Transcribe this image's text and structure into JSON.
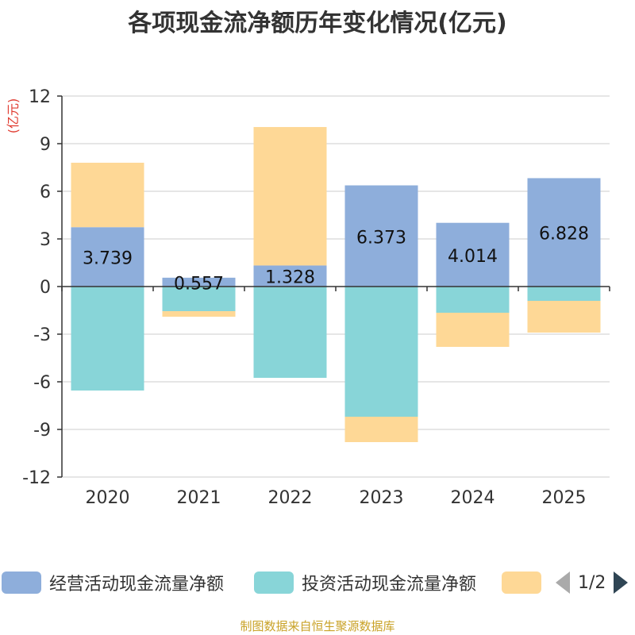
{
  "chart_data": {
    "type": "bar",
    "stacked": true,
    "title": "各项现金流净额历年变化情况(亿元)",
    "ylabel": "(亿元)",
    "xlabel": "",
    "categories": [
      "2020",
      "2021",
      "2022",
      "2023",
      "2024",
      "2025"
    ],
    "ylim": [
      -12,
      12
    ],
    "yticks": [
      12,
      9,
      6,
      3,
      0,
      -3,
      -6,
      -9,
      -12
    ],
    "grid": true,
    "series": [
      {
        "name": "经营活动现金流量净额",
        "color": "#8eaedb",
        "values": [
          3.739,
          0.557,
          1.328,
          6.373,
          4.014,
          6.828
        ],
        "labels": [
          "3.739",
          "0.557",
          "1.328",
          "6.373",
          "4.014",
          "6.828"
        ]
      },
      {
        "name": "投资活动现金流量净额",
        "color": "#88d5d8",
        "values": [
          -6.55,
          -1.55,
          -5.75,
          -8.2,
          -1.65,
          -0.9
        ]
      },
      {
        "name": "",
        "color": "#fed896",
        "values": [
          4.06,
          -0.35,
          8.72,
          -1.6,
          -2.15,
          -2.0
        ]
      }
    ],
    "legend_position": "bottom",
    "legend_page": "1/2"
  },
  "source": "制图数据来自恒生聚源数据库"
}
